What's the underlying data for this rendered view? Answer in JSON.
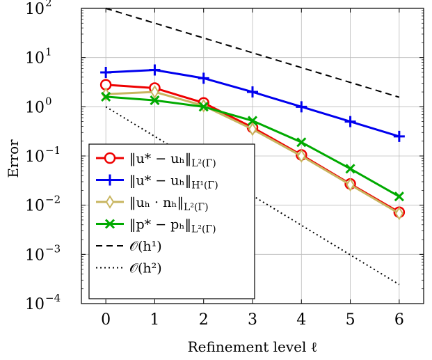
{
  "chart_data": {
    "type": "line",
    "xlabel": "Refinement level ℓ",
    "ylabel": "Error",
    "xscale": "linear",
    "yscale": "log",
    "xlim": [
      -0.5,
      6.5
    ],
    "ylim": [
      0.0001,
      100
    ],
    "grid": "major (x and y)",
    "legend_position": "bottom-left",
    "x_ticks": [
      0,
      1,
      2,
      3,
      4,
      5,
      6
    ],
    "x_tick_labels": [
      "0",
      "1",
      "2",
      "3",
      "4",
      "5",
      "6"
    ],
    "y_ticks": [
      0.0001,
      0.001,
      0.01,
      0.1,
      1,
      10,
      100
    ],
    "y_tick_labels": [
      {
        "base": "10",
        "exp": "−4"
      },
      {
        "base": "10",
        "exp": "−3"
      },
      {
        "base": "10",
        "exp": "−2"
      },
      {
        "base": "10",
        "exp": "−1"
      },
      {
        "base": "10",
        "exp": "0"
      },
      {
        "base": "10",
        "exp": "1"
      },
      {
        "base": "10",
        "exp": "2"
      }
    ],
    "series": [
      {
        "name": "‖u* − u_h‖_{L²(Γ)}",
        "legend_label": {
          "main": "‖u* − uₕ‖",
          "sub": "L²(Γ)"
        },
        "color": "#ee0000",
        "marker": "circle",
        "line": "solid",
        "x": [
          0,
          1,
          2,
          3,
          4,
          5,
          6
        ],
        "y": [
          2.8,
          2.4,
          1.2,
          0.38,
          0.105,
          0.027,
          0.0072
        ]
      },
      {
        "name": "‖u* − u_h‖_{H¹(Γ)}",
        "legend_label": {
          "main": "‖u* − uₕ‖",
          "sub": "H¹(Γ)"
        },
        "color": "#0000ee",
        "marker": "plus",
        "line": "solid",
        "x": [
          0,
          1,
          2,
          3,
          4,
          5,
          6
        ],
        "y": [
          5.0,
          5.6,
          3.8,
          2.0,
          1.0,
          0.5,
          0.25
        ]
      },
      {
        "name": "‖u_h · n_h‖_{L²(Γ)}",
        "legend_label": {
          "main": "‖uₕ · nₕ‖",
          "sub": "L²(Γ)"
        },
        "color": "#c8b560",
        "marker": "diamond",
        "line": "solid",
        "x": [
          0,
          1,
          2,
          3,
          4,
          5,
          6
        ],
        "y": [
          1.8,
          2.0,
          1.05,
          0.35,
          0.1,
          0.026,
          0.0068
        ]
      },
      {
        "name": "‖p* − p_h‖_{L²(Γ)}",
        "legend_label": {
          "main": "‖p* − pₕ‖",
          "sub": "L²(Γ)"
        },
        "color": "#00aa00",
        "marker": "cross",
        "line": "solid",
        "x": [
          0,
          1,
          2,
          3,
          4,
          5,
          6
        ],
        "y": [
          1.6,
          1.35,
          1.0,
          0.52,
          0.19,
          0.055,
          0.015
        ]
      },
      {
        "name": "O(h¹)",
        "legend_label": {
          "main": "𝒪(h¹)",
          "sub": ""
        },
        "color": "#000000",
        "marker": "none",
        "line": "dashed",
        "x": [
          0,
          6
        ],
        "y": [
          100,
          1.5625
        ]
      },
      {
        "name": "O(h²)",
        "legend_label": {
          "main": "𝒪(h²)",
          "sub": ""
        },
        "color": "#000000",
        "marker": "none",
        "line": "dotted",
        "x": [
          0,
          6
        ],
        "y": [
          1.0,
          0.000244
        ]
      }
    ]
  }
}
